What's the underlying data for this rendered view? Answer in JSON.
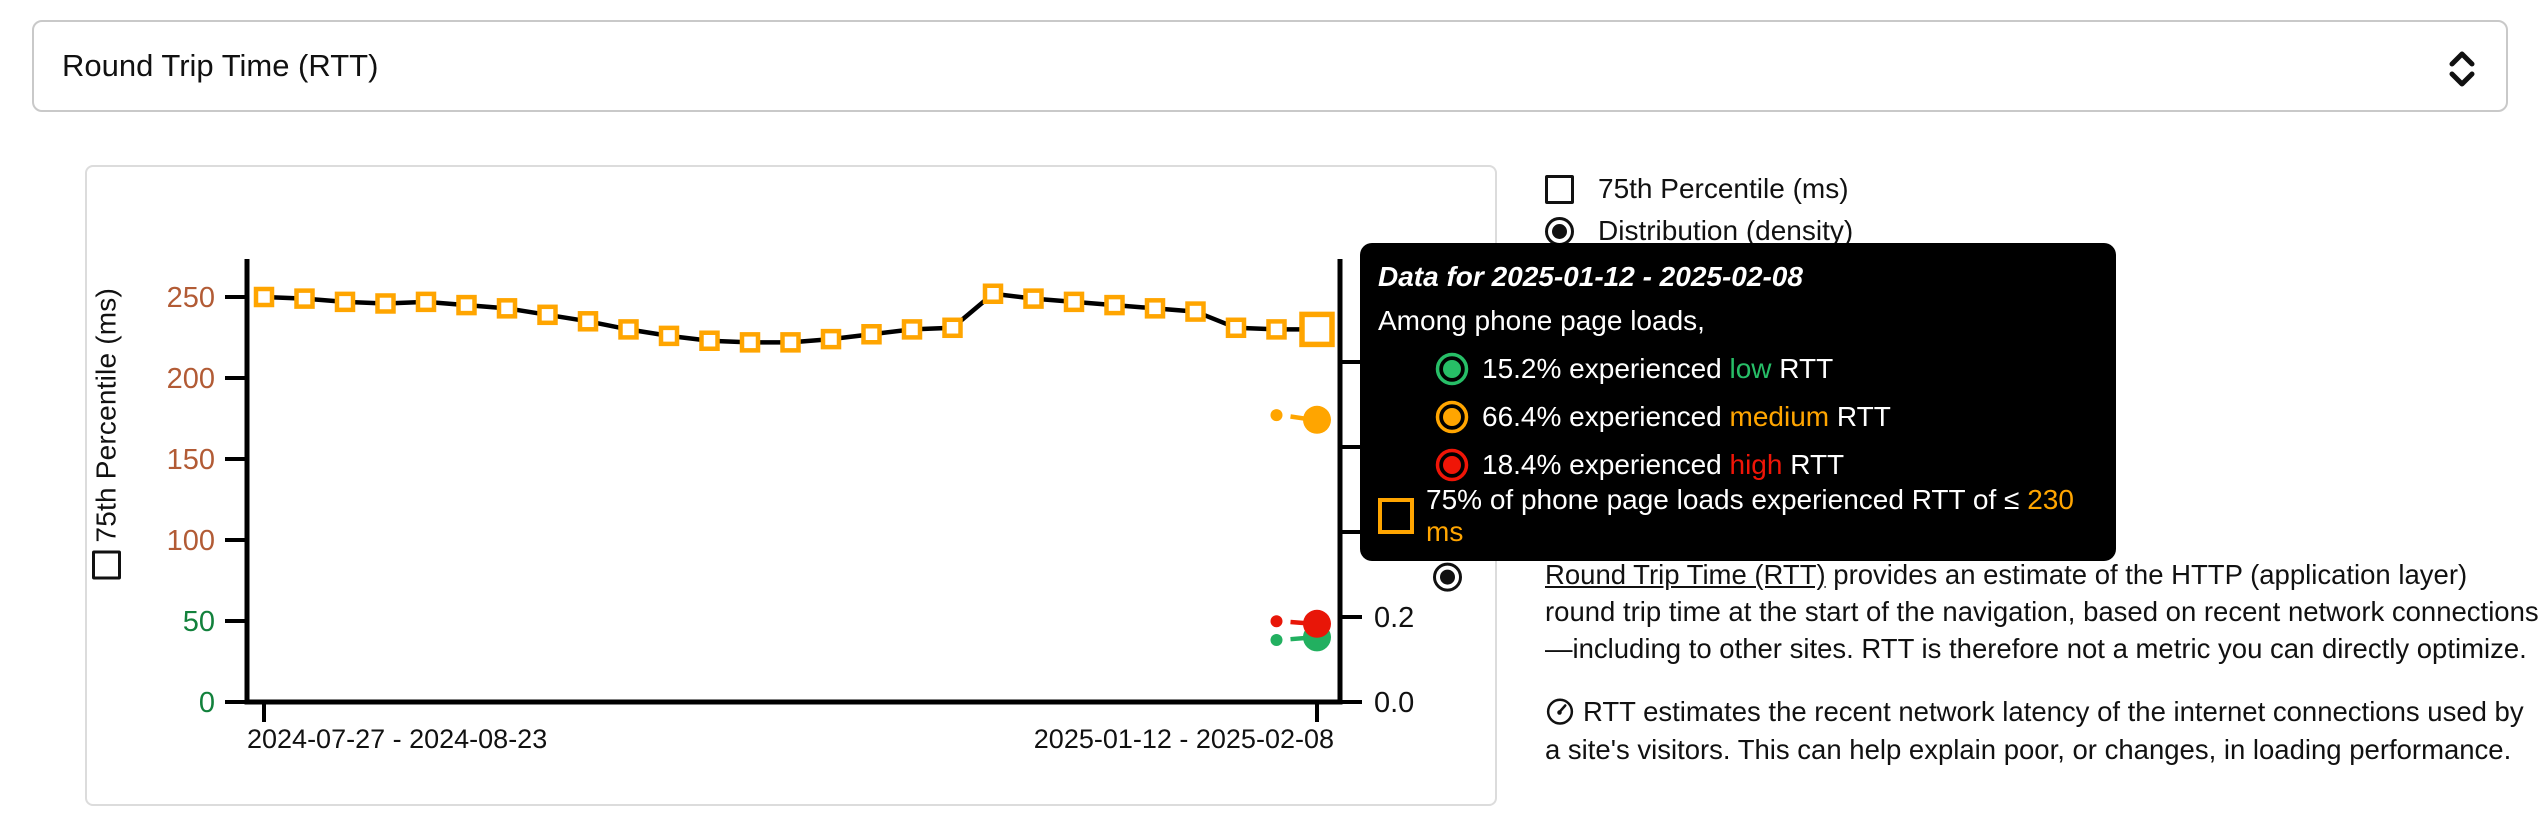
{
  "dropdown": {
    "selected": "Round Trip Time (RTT)"
  },
  "legend": {
    "percentile_label": "75th Percentile (ms)",
    "distribution_label": "Distribution (density)"
  },
  "tooltip": {
    "title": "Data for 2025-01-12 - 2025-02-08",
    "intro": "Among phone page loads,",
    "rows": [
      {
        "pct": "15.2%",
        "middle": " experienced ",
        "level": "low",
        "suffix": " RTT",
        "color": "#27be67"
      },
      {
        "pct": "66.4%",
        "middle": " experienced ",
        "level": "medium",
        "suffix": " RTT",
        "color": "#ffa500"
      },
      {
        "pct": "18.4%",
        "middle": " experienced ",
        "level": "high",
        "suffix": " RTT",
        "color": "#f01507"
      }
    ],
    "summary": {
      "prefix": "75% of phone page loads experienced RTT of ≤ ",
      "value": "230 ms"
    }
  },
  "description": {
    "p1_link": "Round Trip Time (RTT)",
    "p1_rest": " provides an estimate of the HTTP (application layer) round trip time at the start of the navigation, based on recent network connections—including to other sites. RTT is therefore not a metric you can directly optimize.",
    "p2": "RTT estimates the recent network latency of the internet connections used by a site's visitors. This can help explain poor, or changes, in loading performance."
  },
  "chart_data": {
    "type": "line",
    "title": "",
    "x_axis": {
      "tick_labels": [
        "2024-07-27 - 2024-08-23",
        "2025-01-12 - 2025-02-08"
      ],
      "num_periods": 27
    },
    "left_axis": {
      "title": "75th Percentile (ms)",
      "ticks": [
        0,
        50,
        100,
        150,
        200,
        250
      ],
      "tick_label_colors": [
        "#12813c",
        "#12813c",
        "#b25b35",
        "#b25b35",
        "#b25b35",
        "#b25b35"
      ],
      "range": [
        0,
        275
      ]
    },
    "right_axis": {
      "title": "Distribution (density)",
      "ticks": [
        0.0,
        0.2,
        0.4,
        0.6,
        0.8
      ],
      "labeled_ticks": [
        "0.0",
        "0.2"
      ],
      "range": [
        0,
        1.05
      ]
    },
    "series": [
      {
        "name": "75th Percentile (ms)",
        "axis": "left",
        "marker": "square",
        "marker_color": "#ffa500",
        "line_color": "#000000",
        "highlight_last": true,
        "values": [
          250,
          249,
          247,
          246,
          247,
          245,
          243,
          239,
          235,
          230,
          226,
          223,
          222,
          222,
          224,
          227,
          230,
          231,
          252,
          249,
          247,
          245,
          243,
          241,
          231,
          230,
          230
        ]
      },
      {
        "name": "low",
        "axis": "right",
        "marker": "circle",
        "marker_color": "#22b060",
        "x_indices": [
          25,
          26
        ],
        "values": [
          0.146,
          0.152
        ]
      },
      {
        "name": "medium",
        "axis": "right",
        "marker": "circle",
        "marker_color": "#ffa500",
        "x_indices": [
          25,
          26
        ],
        "values": [
          0.675,
          0.664
        ]
      },
      {
        "name": "high",
        "axis": "right",
        "marker": "circle",
        "marker_color": "#e81608",
        "x_indices": [
          25,
          26
        ],
        "values": [
          0.19,
          0.184
        ]
      }
    ],
    "highlighted_period": "2025-01-12 - 2025-02-08",
    "grid": false,
    "legend_position": "top-right-outside"
  }
}
